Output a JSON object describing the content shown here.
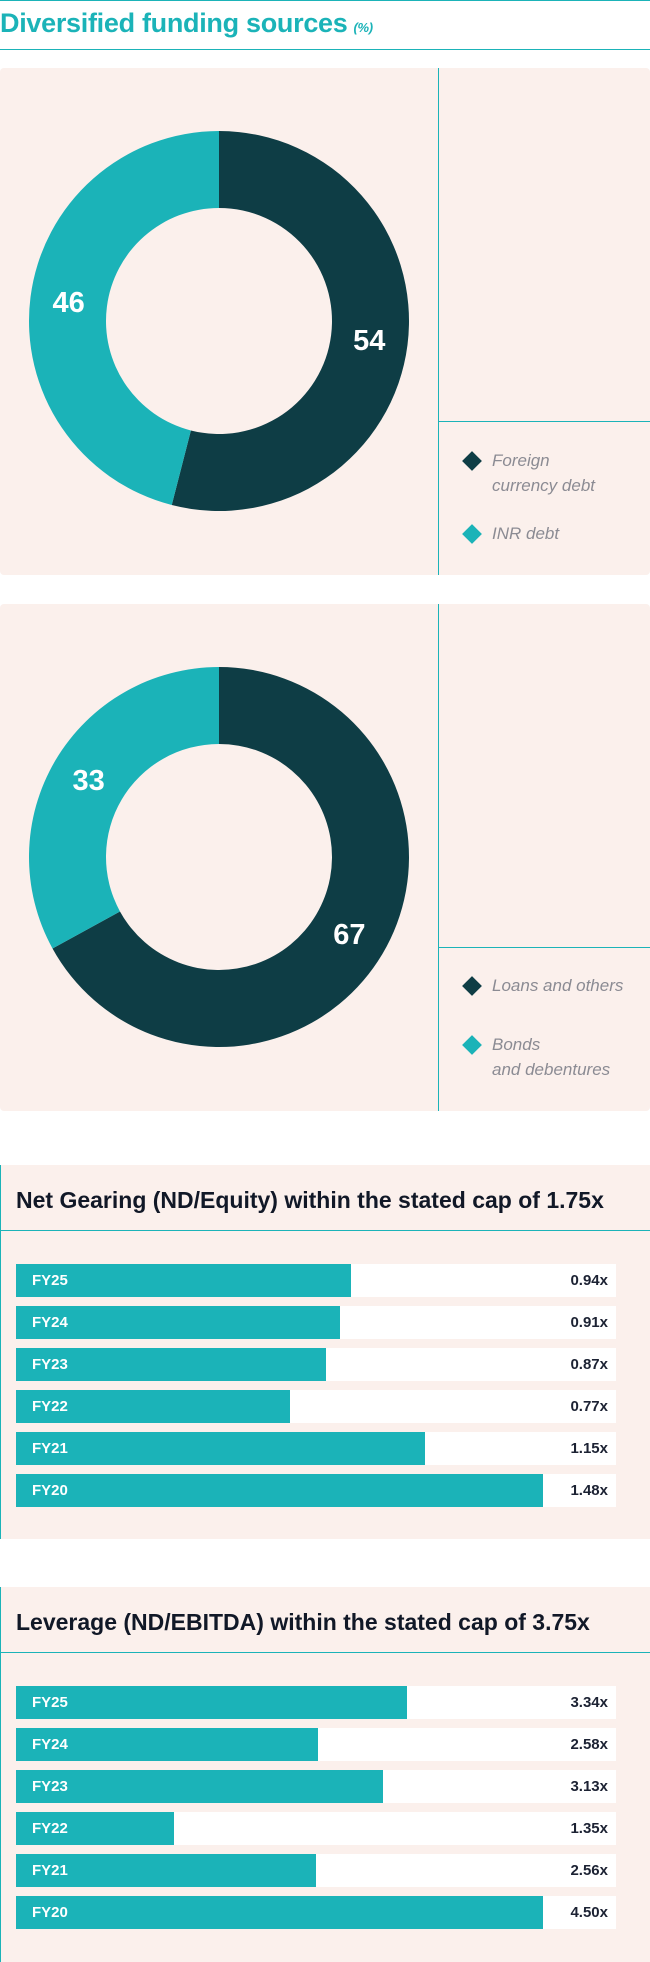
{
  "page": {
    "title": "Diversified funding sources",
    "title_unit": "(%)"
  },
  "colors": {
    "accent": "#1bb3b8",
    "dark": "#0e3d45",
    "panel_bg": "#fbf0ec",
    "legend_text": "#8b8b93"
  },
  "chart_data": [
    {
      "type": "pie",
      "donut": true,
      "values": [
        54,
        46
      ],
      "labels": [
        "Foreign currency debt",
        "INR debt"
      ],
      "colors": [
        "#0e3d45",
        "#1bb3b8"
      ],
      "legend": [
        {
          "line1": "Foreign",
          "line2": "currency debt",
          "color": "#0e3d45"
        },
        {
          "line1": "INR debt",
          "line2": "",
          "color": "#1bb3b8"
        }
      ]
    },
    {
      "type": "pie",
      "donut": true,
      "values": [
        67,
        33
      ],
      "labels": [
        "Loans and others",
        "Bonds and debentures"
      ],
      "colors": [
        "#0e3d45",
        "#1bb3b8"
      ],
      "legend": [
        {
          "line1": "Loans and others",
          "line2": "",
          "color": "#0e3d45"
        },
        {
          "line1": "Bonds",
          "line2": "and debentures",
          "color": "#1bb3b8"
        }
      ]
    },
    {
      "type": "bar",
      "orientation": "horizontal",
      "title": "Net Gearing (ND/Equity) within the stated cap of 1.75x",
      "categories": [
        "FY25",
        "FY24",
        "FY23",
        "FY22",
        "FY21",
        "FY20"
      ],
      "values": [
        0.94,
        0.91,
        0.87,
        0.77,
        1.15,
        1.48
      ],
      "value_labels": [
        "0.94x",
        "0.91x",
        "0.87x",
        "0.77x",
        "1.15x",
        "1.48x"
      ]
    },
    {
      "type": "bar",
      "orientation": "horizontal",
      "title": "Leverage (ND/EBITDA) within the stated cap of 3.75x",
      "categories": [
        "FY25",
        "FY24",
        "FY23",
        "FY22",
        "FY21",
        "FY20"
      ],
      "values": [
        3.34,
        2.58,
        3.13,
        1.35,
        2.56,
        4.5
      ],
      "value_labels": [
        "3.34x",
        "2.58x",
        "3.13x",
        "1.35x",
        "2.56x",
        "4.50x"
      ]
    }
  ]
}
